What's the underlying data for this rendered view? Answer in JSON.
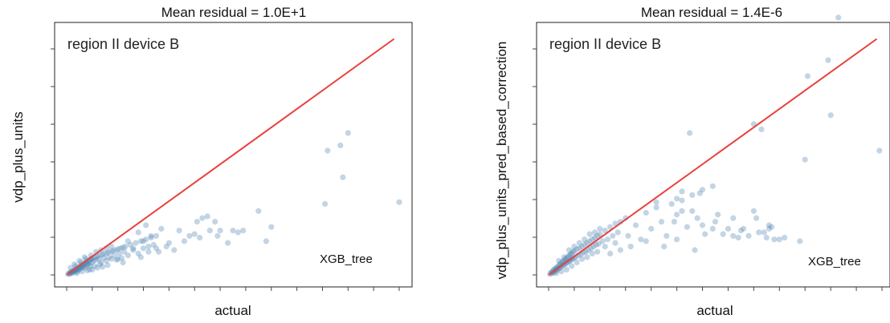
{
  "chart_data": [
    {
      "type": "scatter",
      "title": "Mean residual = 1.0E+1",
      "xlabel": "actual",
      "ylabel": "vdp_plus_units",
      "annotation": "region II device B",
      "model_label": "XGB_tree",
      "xlim": [
        0,
        13
      ],
      "ylim": [
        0,
        14
      ],
      "reference_line": {
        "from": [
          0,
          0
        ],
        "to": [
          12.8,
          13.3
        ],
        "color": "#e8413c"
      },
      "point_color": "#4a7fb0",
      "points": [
        [
          0.05,
          0.05
        ],
        [
          0.1,
          0.1
        ],
        [
          0.12,
          0.05
        ],
        [
          0.15,
          0.15
        ],
        [
          0.18,
          0.1
        ],
        [
          0.2,
          0.2
        ],
        [
          0.22,
          0.12
        ],
        [
          0.25,
          0.2
        ],
        [
          0.28,
          0.25
        ],
        [
          0.3,
          0.15
        ],
        [
          0.32,
          0.3
        ],
        [
          0.35,
          0.25
        ],
        [
          0.38,
          0.3
        ],
        [
          0.4,
          0.35
        ],
        [
          0.42,
          0.2
        ],
        [
          0.45,
          0.4
        ],
        [
          0.48,
          0.3
        ],
        [
          0.5,
          0.45
        ],
        [
          0.52,
          0.35
        ],
        [
          0.55,
          0.5
        ],
        [
          0.58,
          0.4
        ],
        [
          0.6,
          0.55
        ],
        [
          0.62,
          0.45
        ],
        [
          0.65,
          0.6
        ],
        [
          0.68,
          0.5
        ],
        [
          0.7,
          0.65
        ],
        [
          0.72,
          0.4
        ],
        [
          0.75,
          0.7
        ],
        [
          0.78,
          0.55
        ],
        [
          0.8,
          0.75
        ],
        [
          0.82,
          0.6
        ],
        [
          0.85,
          0.8
        ],
        [
          0.88,
          0.65
        ],
        [
          0.9,
          0.85
        ],
        [
          0.92,
          0.5
        ],
        [
          0.95,
          0.9
        ],
        [
          0.98,
          0.7
        ],
        [
          1.0,
          0.95
        ],
        [
          1.05,
          0.8
        ],
        [
          1.1,
          1.0
        ],
        [
          1.15,
          0.85
        ],
        [
          1.2,
          1.05
        ],
        [
          1.25,
          0.9
        ],
        [
          1.3,
          1.1
        ],
        [
          1.35,
          0.7
        ],
        [
          1.4,
          1.15
        ],
        [
          1.45,
          0.95
        ],
        [
          1.5,
          1.2
        ],
        [
          1.55,
          0.8
        ],
        [
          1.6,
          1.25
        ],
        [
          1.65,
          1.0
        ],
        [
          1.7,
          1.3
        ],
        [
          1.75,
          0.9
        ],
        [
          1.8,
          1.35
        ],
        [
          1.85,
          1.1
        ],
        [
          1.9,
          1.4
        ],
        [
          1.95,
          0.85
        ],
        [
          2.0,
          1.45
        ],
        [
          2.05,
          1.2
        ],
        [
          2.1,
          1.5
        ],
        [
          2.15,
          0.95
        ],
        [
          2.2,
          1.55
        ],
        [
          2.25,
          1.3
        ],
        [
          2.3,
          1.6
        ],
        [
          2.4,
          1.1
        ],
        [
          2.5,
          1.7
        ],
        [
          2.6,
          1.4
        ],
        [
          2.7,
          1.8
        ],
        [
          2.8,
          1.2
        ],
        [
          2.9,
          1.9
        ],
        [
          3.0,
          1.5
        ],
        [
          3.1,
          2.0
        ],
        [
          3.2,
          1.3
        ],
        [
          3.3,
          2.1
        ],
        [
          3.4,
          1.7
        ],
        [
          3.5,
          2.2
        ],
        [
          0.3,
          0.6
        ],
        [
          0.5,
          0.8
        ],
        [
          0.7,
          1.0
        ],
        [
          0.9,
          0.3
        ],
        [
          1.1,
          0.5
        ],
        [
          1.3,
          0.6
        ],
        [
          0.4,
          0.1
        ],
        [
          0.6,
          0.2
        ],
        [
          0.8,
          0.25
        ],
        [
          1.0,
          0.3
        ],
        [
          1.2,
          0.4
        ],
        [
          1.4,
          0.45
        ],
        [
          1.6,
          0.55
        ],
        [
          2.0,
          0.9
        ],
        [
          2.2,
          0.7
        ],
        [
          2.4,
          1.9
        ],
        [
          2.6,
          1.5
        ],
        [
          2.8,
          2.4
        ],
        [
          2.9,
          1.0
        ],
        [
          3.0,
          1.9
        ],
        [
          3.1,
          2.8
        ],
        [
          3.2,
          1.6
        ],
        [
          3.3,
          2.2
        ],
        [
          3.5,
          1.5
        ],
        [
          3.6,
          1.3
        ],
        [
          3.7,
          2.6
        ],
        [
          3.9,
          1.6
        ],
        [
          4.0,
          1.8
        ],
        [
          4.2,
          1.4
        ],
        [
          4.4,
          2.5
        ],
        [
          4.6,
          1.9
        ],
        [
          4.8,
          2.2
        ],
        [
          5.0,
          2.3
        ],
        [
          5.1,
          3.0
        ],
        [
          5.2,
          2.1
        ],
        [
          5.3,
          3.2
        ],
        [
          5.5,
          3.3
        ],
        [
          5.6,
          2.5
        ],
        [
          5.8,
          3.0
        ],
        [
          5.9,
          2.2
        ],
        [
          6.0,
          2.5
        ],
        [
          6.3,
          1.8
        ],
        [
          6.5,
          2.5
        ],
        [
          6.7,
          2.4
        ],
        [
          6.9,
          2.5
        ],
        [
          7.5,
          3.6
        ],
        [
          7.8,
          1.9
        ],
        [
          8.0,
          2.7
        ],
        [
          10.1,
          4.0
        ],
        [
          10.2,
          7.0
        ],
        [
          10.7,
          7.3
        ],
        [
          10.8,
          5.5
        ],
        [
          11.0,
          8.0
        ],
        [
          13.0,
          4.1
        ],
        [
          0.15,
          0.4
        ],
        [
          0.35,
          0.5
        ],
        [
          0.55,
          0.7
        ],
        [
          0.75,
          0.9
        ],
        [
          0.95,
          1.1
        ],
        [
          1.15,
          1.3
        ],
        [
          1.35,
          1.4
        ],
        [
          1.55,
          1.5
        ],
        [
          1.75,
          1.6
        ]
      ]
    },
    {
      "type": "scatter",
      "title": "Mean residual = 1.4E-6",
      "xlabel": "actual",
      "ylabel": "vdp_plus_units_pred_based_correction",
      "annotation": "region II device B",
      "model_label": "XGB_tree",
      "xlim": [
        0,
        13
      ],
      "ylim": [
        0,
        14
      ],
      "reference_line": {
        "from": [
          0,
          0
        ],
        "to": [
          12.8,
          13.3
        ],
        "color": "#e8413c"
      },
      "point_color": "#4a7fb0",
      "points": [
        [
          0.05,
          0.05
        ],
        [
          0.1,
          0.15
        ],
        [
          0.12,
          0.08
        ],
        [
          0.15,
          0.2
        ],
        [
          0.18,
          0.12
        ],
        [
          0.2,
          0.3
        ],
        [
          0.22,
          0.18
        ],
        [
          0.25,
          0.35
        ],
        [
          0.28,
          0.25
        ],
        [
          0.3,
          0.4
        ],
        [
          0.32,
          0.28
        ],
        [
          0.35,
          0.45
        ],
        [
          0.38,
          0.35
        ],
        [
          0.4,
          0.55
        ],
        [
          0.42,
          0.38
        ],
        [
          0.45,
          0.6
        ],
        [
          0.48,
          0.45
        ],
        [
          0.5,
          0.7
        ],
        [
          0.52,
          0.5
        ],
        [
          0.55,
          0.75
        ],
        [
          0.58,
          0.55
        ],
        [
          0.6,
          0.8
        ],
        [
          0.62,
          0.6
        ],
        [
          0.65,
          0.9
        ],
        [
          0.68,
          0.65
        ],
        [
          0.7,
          0.95
        ],
        [
          0.72,
          0.7
        ],
        [
          0.75,
          1.0
        ],
        [
          0.78,
          0.75
        ],
        [
          0.8,
          1.1
        ],
        [
          0.82,
          0.8
        ],
        [
          0.85,
          1.15
        ],
        [
          0.88,
          0.85
        ],
        [
          0.9,
          1.2
        ],
        [
          0.92,
          0.9
        ],
        [
          0.95,
          1.3
        ],
        [
          0.98,
          0.95
        ],
        [
          1.0,
          1.35
        ],
        [
          1.05,
          1.0
        ],
        [
          1.1,
          1.45
        ],
        [
          1.15,
          1.1
        ],
        [
          1.2,
          1.5
        ],
        [
          1.25,
          1.15
        ],
        [
          1.3,
          1.6
        ],
        [
          1.35,
          1.25
        ],
        [
          1.4,
          1.7
        ],
        [
          1.45,
          1.3
        ],
        [
          1.5,
          1.8
        ],
        [
          1.55,
          1.4
        ],
        [
          1.6,
          1.9
        ],
        [
          1.65,
          1.5
        ],
        [
          1.7,
          2.0
        ],
        [
          1.75,
          1.6
        ],
        [
          1.8,
          2.1
        ],
        [
          1.85,
          1.7
        ],
        [
          1.9,
          2.2
        ],
        [
          1.95,
          1.75
        ],
        [
          2.0,
          2.3
        ],
        [
          2.1,
          1.9
        ],
        [
          2.2,
          2.5
        ],
        [
          2.3,
          2.0
        ],
        [
          2.4,
          2.7
        ],
        [
          2.5,
          2.2
        ],
        [
          2.6,
          2.9
        ],
        [
          2.7,
          2.4
        ],
        [
          2.8,
          3.0
        ],
        [
          0.3,
          0.1
        ],
        [
          0.5,
          0.2
        ],
        [
          0.7,
          0.3
        ],
        [
          0.9,
          0.5
        ],
        [
          1.1,
          0.7
        ],
        [
          1.3,
          0.9
        ],
        [
          1.5,
          1.0
        ],
        [
          1.7,
          1.2
        ],
        [
          1.9,
          1.3
        ],
        [
          0.4,
          0.8
        ],
        [
          0.6,
          1.0
        ],
        [
          0.8,
          1.4
        ],
        [
          1.0,
          1.6
        ],
        [
          1.2,
          1.8
        ],
        [
          1.4,
          2.0
        ],
        [
          1.6,
          2.3
        ],
        [
          1.8,
          2.4
        ],
        [
          2.0,
          2.6
        ],
        [
          2.2,
          1.6
        ],
        [
          2.4,
          1.2
        ],
        [
          2.6,
          1.8
        ],
        [
          2.8,
          1.4
        ],
        [
          3.0,
          3.2
        ],
        [
          3.1,
          2.2
        ],
        [
          3.2,
          1.6
        ],
        [
          3.4,
          2.8
        ],
        [
          3.6,
          2.0
        ],
        [
          3.8,
          3.5
        ],
        [
          4.0,
          2.6
        ],
        [
          4.2,
          3.8
        ],
        [
          4.4,
          3.0
        ],
        [
          4.6,
          2.2
        ],
        [
          4.8,
          4.0
        ],
        [
          5.0,
          3.4
        ],
        [
          5.2,
          4.2
        ],
        [
          5.4,
          2.7
        ],
        [
          5.6,
          3.6
        ],
        [
          5.8,
          3.2
        ],
        [
          6.1,
          2.3
        ],
        [
          6.4,
          2.6
        ],
        [
          6.6,
          3.4
        ],
        [
          6.8,
          2.3
        ],
        [
          7.0,
          2.6
        ],
        [
          7.2,
          2.2
        ],
        [
          7.4,
          2.1
        ],
        [
          7.6,
          2.6
        ],
        [
          7.8,
          2.2
        ],
        [
          8.0,
          3.6
        ],
        [
          8.1,
          3.2
        ],
        [
          8.2,
          2.4
        ],
        [
          8.5,
          2.1
        ],
        [
          8.6,
          2.6
        ],
        [
          9.0,
          2.0
        ],
        [
          9.2,
          2.1
        ],
        [
          9.8,
          1.9
        ],
        [
          4.2,
          4.1
        ],
        [
          5.0,
          4.3
        ],
        [
          5.6,
          4.5
        ],
        [
          6.0,
          4.8
        ],
        [
          6.4,
          5.0
        ],
        [
          7.2,
          3.2
        ],
        [
          7.5,
          2.5
        ],
        [
          8.6,
          2.8
        ],
        [
          5.0,
          2.0
        ],
        [
          5.7,
          1.4
        ],
        [
          4.5,
          1.6
        ],
        [
          3.8,
          1.9
        ],
        [
          4.9,
          3.0
        ],
        [
          5.2,
          3.6
        ],
        [
          6.5,
          3.0
        ],
        [
          8.4,
          2.4
        ],
        [
          6.0,
          2.8
        ],
        [
          8.8,
          2.0
        ],
        [
          8.7,
          2.7
        ],
        [
          10.1,
          11.2
        ],
        [
          10.9,
          12.1
        ],
        [
          11.3,
          14.5
        ],
        [
          11.0,
          9.0
        ],
        [
          5.5,
          8.0
        ],
        [
          8.0,
          8.5
        ],
        [
          8.3,
          8.2
        ],
        [
          10.0,
          6.5
        ],
        [
          12.9,
          7.0
        ],
        [
          5.2,
          4.7
        ],
        [
          5.9,
          4.6
        ]
      ]
    }
  ]
}
